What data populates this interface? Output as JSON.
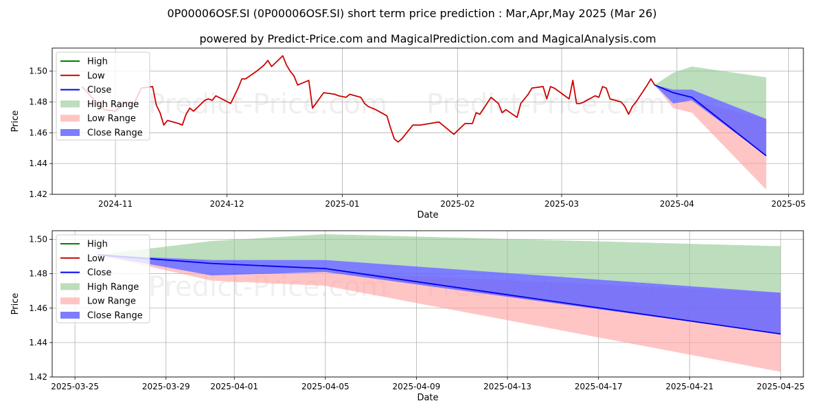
{
  "title": "0P00006OSF.SI (0P00006OSF.SI) short term price prediction : Mar,Apr,May 2025 (Mar 26)",
  "subtitle": "powered by Predict-Price.com and MagicalPrediction.com and MagicalAnalysis.com",
  "watermark": "Predict-Price.com",
  "colors": {
    "high": "#008000",
    "low": "#cc0000",
    "close": "#0000ee",
    "high_range": "#90c890",
    "low_range": "#ff9e9e",
    "close_range": "#6666ff",
    "grid": "#b0b0b0"
  },
  "chart_data": [
    {
      "type": "line",
      "xlabel": "Date",
      "ylabel": "Price",
      "xlim": [
        "2024-10-15",
        "2025-05-05"
      ],
      "ylim": [
        1.42,
        1.515
      ],
      "grid": true,
      "legend": "top-left",
      "x_ticks": [
        "2024-11",
        "2024-12",
        "2025-01",
        "2025-02",
        "2025-03",
        "2025-04",
        "2025-05"
      ],
      "y_ticks": [
        "1.42",
        "1.44",
        "1.46",
        "1.48",
        "1.50"
      ],
      "legend_entries": [
        "High",
        "Low",
        "Close",
        "High Range",
        "Low Range",
        "Close Range"
      ],
      "series": [
        {
          "name": "Low",
          "role": "low",
          "x": [
            "2024-10-23",
            "2024-10-26",
            "2024-10-29",
            "2024-11-01",
            "2024-11-04",
            "2024-11-06",
            "2024-11-08",
            "2024-11-11",
            "2024-11-12",
            "2024-11-13",
            "2024-11-14",
            "2024-11-15",
            "2024-11-18",
            "2024-11-19",
            "2024-11-20",
            "2024-11-21",
            "2024-11-22",
            "2024-11-25",
            "2024-11-26",
            "2024-11-27",
            "2024-11-28",
            "2024-12-02",
            "2024-12-03",
            "2024-12-04",
            "2024-12-05",
            "2024-12-06",
            "2024-12-09",
            "2024-12-10",
            "2024-12-11",
            "2024-12-12",
            "2024-12-13",
            "2024-12-16",
            "2024-12-17",
            "2024-12-18",
            "2024-12-19",
            "2024-12-20",
            "2024-12-23",
            "2024-12-24",
            "2024-12-27",
            "2024-12-30",
            "2024-12-31",
            "2025-01-02",
            "2025-01-03",
            "2025-01-06",
            "2025-01-07",
            "2025-01-08",
            "2025-01-09",
            "2025-01-10",
            "2025-01-13",
            "2025-01-14",
            "2025-01-15",
            "2025-01-16",
            "2025-01-17",
            "2025-01-20",
            "2025-01-21",
            "2025-01-22",
            "2025-01-27",
            "2025-01-28",
            "2025-01-31",
            "2025-02-03",
            "2025-02-04",
            "2025-02-05",
            "2025-02-06",
            "2025-02-07",
            "2025-02-10",
            "2025-02-11",
            "2025-02-12",
            "2025-02-13",
            "2025-02-14",
            "2025-02-17",
            "2025-02-18",
            "2025-02-19",
            "2025-02-20",
            "2025-02-21",
            "2025-02-24",
            "2025-02-25",
            "2025-02-26",
            "2025-02-27",
            "2025-03-03",
            "2025-03-04",
            "2025-03-05",
            "2025-03-06",
            "2025-03-07",
            "2025-03-10",
            "2025-03-11",
            "2025-03-12",
            "2025-03-13",
            "2025-03-14",
            "2025-03-17",
            "2025-03-18",
            "2025-03-19",
            "2025-03-20",
            "2025-03-21",
            "2025-03-24",
            "2025-03-25",
            "2025-03-26"
          ],
          "values": [
            1.49,
            1.482,
            1.475,
            1.474,
            1.48,
            1.479,
            1.489,
            1.49,
            1.478,
            1.473,
            1.465,
            1.468,
            1.466,
            1.465,
            1.472,
            1.476,
            1.474,
            1.481,
            1.482,
            1.481,
            1.484,
            1.479,
            1.484,
            1.489,
            1.495,
            1.495,
            1.5,
            1.502,
            1.504,
            1.507,
            1.503,
            1.51,
            1.504,
            1.5,
            1.497,
            1.491,
            1.494,
            1.476,
            1.486,
            1.485,
            1.484,
            1.483,
            1.485,
            1.483,
            1.479,
            1.477,
            1.476,
            1.475,
            1.471,
            1.463,
            1.456,
            1.454,
            1.456,
            1.465,
            1.465,
            1.465,
            1.467,
            1.465,
            1.459,
            1.466,
            1.466,
            1.466,
            1.473,
            1.472,
            1.483,
            1.481,
            1.479,
            1.473,
            1.475,
            1.47,
            1.479,
            1.482,
            1.485,
            1.489,
            1.49,
            1.482,
            1.49,
            1.489,
            1.482,
            1.494,
            1.479,
            1.479,
            1.48,
            1.484,
            1.483,
            1.49,
            1.489,
            1.482,
            1.48,
            1.477,
            1.472,
            1.477,
            1.48,
            1.491,
            1.495,
            1.491
          ]
        },
        {
          "name": "Close",
          "role": "close",
          "x": [
            "2025-03-26",
            "2025-03-31",
            "2025-04-05",
            "2025-04-25"
          ],
          "values": [
            1.491,
            1.486,
            1.483,
            1.445
          ]
        }
      ],
      "bands": [
        {
          "name": "High Range",
          "role": "high_range",
          "x": [
            "2025-03-26",
            "2025-03-31",
            "2025-04-05",
            "2025-04-25"
          ],
          "upper": [
            1.491,
            1.499,
            1.503,
            1.496
          ],
          "lower": [
            1.491,
            1.488,
            1.488,
            1.469
          ]
        },
        {
          "name": "Low Range",
          "role": "low_range",
          "x": [
            "2025-03-26",
            "2025-03-31",
            "2025-04-05",
            "2025-04-25"
          ],
          "upper": [
            1.491,
            1.479,
            1.481,
            1.469
          ],
          "lower": [
            1.491,
            1.476,
            1.473,
            1.423
          ]
        },
        {
          "name": "Close Range",
          "role": "close_range",
          "x": [
            "2025-03-26",
            "2025-03-31",
            "2025-04-05",
            "2025-04-25"
          ],
          "upper": [
            1.491,
            1.488,
            1.488,
            1.469
          ],
          "lower": [
            1.491,
            1.479,
            1.481,
            1.445
          ]
        }
      ]
    },
    {
      "type": "line",
      "xlabel": "Date",
      "ylabel": "Price",
      "xlim": [
        "2025-03-24",
        "2025-04-26"
      ],
      "ylim": [
        1.42,
        1.505
      ],
      "grid": true,
      "legend": "top-left",
      "x_ticks": [
        "2025-03-25",
        "2025-03-29",
        "2025-04-01",
        "2025-04-05",
        "2025-04-09",
        "2025-04-13",
        "2025-04-17",
        "2025-04-21",
        "2025-04-25"
      ],
      "y_ticks": [
        "1.42",
        "1.44",
        "1.46",
        "1.48",
        "1.50"
      ],
      "legend_entries": [
        "High",
        "Low",
        "Close",
        "High Range",
        "Low Range",
        "Close Range"
      ],
      "series": [
        {
          "name": "Close",
          "role": "close",
          "x": [
            "2025-03-26",
            "2025-03-31",
            "2025-04-05",
            "2025-04-25"
          ],
          "values": [
            1.491,
            1.486,
            1.483,
            1.445
          ]
        }
      ],
      "bands": [
        {
          "name": "High Range",
          "role": "high_range",
          "x": [
            "2025-03-26",
            "2025-03-31",
            "2025-04-05",
            "2025-04-25"
          ],
          "upper": [
            1.491,
            1.499,
            1.503,
            1.496
          ],
          "lower": [
            1.491,
            1.488,
            1.488,
            1.469
          ]
        },
        {
          "name": "Low Range",
          "role": "low_range",
          "x": [
            "2025-03-26",
            "2025-03-31",
            "2025-04-05",
            "2025-04-25"
          ],
          "upper": [
            1.491,
            1.479,
            1.481,
            1.469
          ],
          "lower": [
            1.491,
            1.476,
            1.473,
            1.423
          ]
        },
        {
          "name": "Close Range",
          "role": "close_range",
          "x": [
            "2025-03-26",
            "2025-03-31",
            "2025-04-05",
            "2025-04-25"
          ],
          "upper": [
            1.491,
            1.488,
            1.488,
            1.469
          ],
          "lower": [
            1.491,
            1.479,
            1.481,
            1.445
          ]
        }
      ]
    }
  ]
}
